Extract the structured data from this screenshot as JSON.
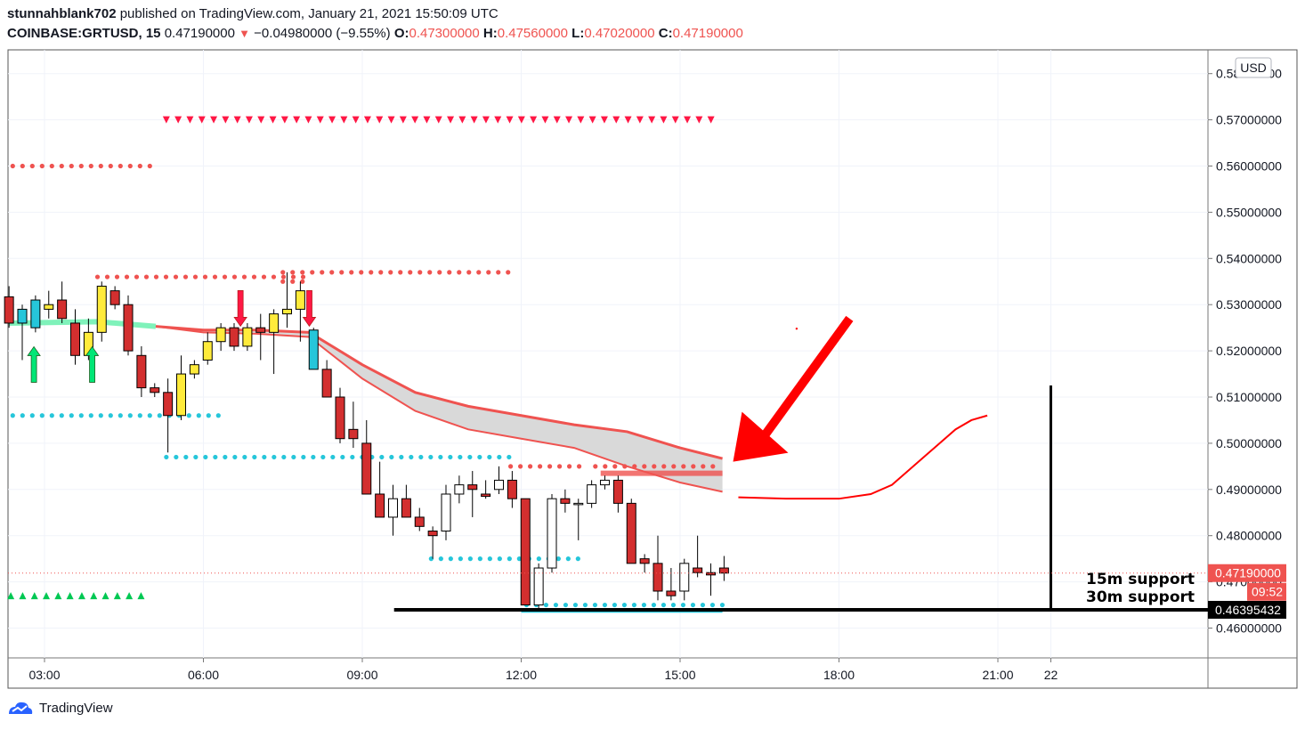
{
  "header": {
    "publisher": "stunnahblank702",
    "published_text": "published on TradingView.com, January 21, 2021 15:50:09 UTC",
    "symbol": "COINBASE:GRTUSD, 15",
    "last": "0.47190000",
    "change": "−0.04980000 (−9.55%)",
    "o_label": "O:",
    "o": "0.47300000",
    "h_label": "H:",
    "h": "0.47560000",
    "l_label": "L:",
    "l": "0.47020000",
    "c_label": "C:",
    "c": "0.47190000"
  },
  "footer": {
    "brand": "TradingView"
  },
  "price_axis": {
    "currency": "USD",
    "ticks": [
      "0.46000000",
      "0.47000000",
      "0.48000000",
      "0.49000000",
      "0.50000000",
      "0.51000000",
      "0.52000000",
      "0.53000000",
      "0.54000000",
      "0.55000000",
      "0.56000000",
      "0.57000000",
      "0.58000000"
    ],
    "last_price_label": "0.47190000",
    "countdown": "09:52",
    "support_price_label": "0.46395432"
  },
  "time_axis": {
    "ticks": [
      "03:00",
      "06:00",
      "09:00",
      "12:00",
      "15:00",
      "18:00",
      "21:00",
      "22"
    ]
  },
  "annotations": {
    "support_15m": "15m support",
    "support_30m": "30m support"
  },
  "colors": {
    "up": "#ffffff",
    "down": "#d32f2f",
    "yellow": "#ffeb3b",
    "cyan": "#26c6da",
    "red_dot": "#ef5350",
    "green": "#00c853",
    "arrow_red": "#ff0000",
    "band_fill": "#d9d9d9"
  },
  "chart_data": {
    "type": "candlestick",
    "interval": "15",
    "ylim": [
      0.455,
      0.585
    ],
    "xlim_hours": [
      2.33,
      24.55
    ],
    "candles": [
      {
        "t": 2.33,
        "o": 0.5317,
        "h": 0.534,
        "l": 0.525,
        "c": 0.526
      },
      {
        "t": 2.58,
        "o": 0.526,
        "h": 0.53,
        "l": 0.518,
        "c": 0.529
      },
      {
        "t": 2.83,
        "o": 0.525,
        "h": 0.532,
        "l": 0.524,
        "c": 0.531
      },
      {
        "t": 3.08,
        "o": 0.529,
        "h": 0.533,
        "l": 0.527,
        "c": 0.53
      },
      {
        "t": 3.33,
        "o": 0.531,
        "h": 0.535,
        "l": 0.526,
        "c": 0.527
      },
      {
        "t": 3.58,
        "o": 0.526,
        "h": 0.529,
        "l": 0.517,
        "c": 0.519
      },
      {
        "t": 3.83,
        "o": 0.519,
        "h": 0.527,
        "l": 0.518,
        "c": 0.524
      },
      {
        "t": 4.08,
        "o": 0.524,
        "h": 0.535,
        "l": 0.522,
        "c": 0.534
      },
      {
        "t": 4.33,
        "o": 0.533,
        "h": 0.534,
        "l": 0.529,
        "c": 0.53
      },
      {
        "t": 4.58,
        "o": 0.53,
        "h": 0.532,
        "l": 0.519,
        "c": 0.52
      },
      {
        "t": 4.83,
        "o": 0.519,
        "h": 0.521,
        "l": 0.51,
        "c": 0.512
      },
      {
        "t": 5.08,
        "o": 0.512,
        "h": 0.513,
        "l": 0.51,
        "c": 0.511
      },
      {
        "t": 5.33,
        "o": 0.511,
        "h": 0.514,
        "l": 0.498,
        "c": 0.506
      },
      {
        "t": 5.58,
        "o": 0.506,
        "h": 0.519,
        "l": 0.505,
        "c": 0.515
      },
      {
        "t": 5.83,
        "o": 0.515,
        "h": 0.518,
        "l": 0.514,
        "c": 0.517
      },
      {
        "t": 6.08,
        "o": 0.518,
        "h": 0.524,
        "l": 0.517,
        "c": 0.522
      },
      {
        "t": 6.33,
        "o": 0.522,
        "h": 0.526,
        "l": 0.52,
        "c": 0.525
      },
      {
        "t": 6.58,
        "o": 0.525,
        "h": 0.526,
        "l": 0.52,
        "c": 0.521
      },
      {
        "t": 6.83,
        "o": 0.521,
        "h": 0.526,
        "l": 0.52,
        "c": 0.525
      },
      {
        "t": 7.08,
        "o": 0.525,
        "h": 0.528,
        "l": 0.518,
        "c": 0.524
      },
      {
        "t": 7.33,
        "o": 0.524,
        "h": 0.529,
        "l": 0.515,
        "c": 0.528
      },
      {
        "t": 7.58,
        "o": 0.528,
        "h": 0.537,
        "l": 0.525,
        "c": 0.529
      },
      {
        "t": 7.83,
        "o": 0.529,
        "h": 0.535,
        "l": 0.522,
        "c": 0.533
      },
      {
        "t": 8.08,
        "o": 0.5245,
        "h": 0.525,
        "l": 0.516,
        "c": 0.516
      },
      {
        "t": 8.33,
        "o": 0.516,
        "h": 0.518,
        "l": 0.51,
        "c": 0.51
      },
      {
        "t": 8.58,
        "o": 0.51,
        "h": 0.512,
        "l": 0.5,
        "c": 0.501
      },
      {
        "t": 8.83,
        "o": 0.503,
        "h": 0.509,
        "l": 0.499,
        "c": 0.501
      },
      {
        "t": 9.08,
        "o": 0.5,
        "h": 0.505,
        "l": 0.489,
        "c": 0.489
      },
      {
        "t": 9.33,
        "o": 0.489,
        "h": 0.496,
        "l": 0.484,
        "c": 0.484
      },
      {
        "t": 9.58,
        "o": 0.484,
        "h": 0.491,
        "l": 0.48,
        "c": 0.488
      },
      {
        "t": 9.83,
        "o": 0.488,
        "h": 0.491,
        "l": 0.484,
        "c": 0.484
      },
      {
        "t": 10.08,
        "o": 0.484,
        "h": 0.486,
        "l": 0.481,
        "c": 0.482
      },
      {
        "t": 10.33,
        "o": 0.481,
        "h": 0.482,
        "l": 0.475,
        "c": 0.48
      },
      {
        "t": 10.58,
        "o": 0.481,
        "h": 0.491,
        "l": 0.479,
        "c": 0.489
      },
      {
        "t": 10.83,
        "o": 0.489,
        "h": 0.493,
        "l": 0.487,
        "c": 0.491
      },
      {
        "t": 11.08,
        "o": 0.491,
        "h": 0.494,
        "l": 0.484,
        "c": 0.49
      },
      {
        "t": 11.33,
        "o": 0.489,
        "h": 0.492,
        "l": 0.488,
        "c": 0.4885
      },
      {
        "t": 11.58,
        "o": 0.49,
        "h": 0.495,
        "l": 0.489,
        "c": 0.492
      },
      {
        "t": 11.83,
        "o": 0.492,
        "h": 0.494,
        "l": 0.486,
        "c": 0.488
      },
      {
        "t": 12.08,
        "o": 0.488,
        "h": 0.488,
        "l": 0.465,
        "c": 0.465
      },
      {
        "t": 12.33,
        "o": 0.465,
        "h": 0.474,
        "l": 0.464,
        "c": 0.473
      },
      {
        "t": 12.58,
        "o": 0.473,
        "h": 0.489,
        "l": 0.472,
        "c": 0.488
      },
      {
        "t": 12.83,
        "o": 0.488,
        "h": 0.49,
        "l": 0.485,
        "c": 0.487
      },
      {
        "t": 13.08,
        "o": 0.487,
        "h": 0.488,
        "l": 0.479,
        "c": 0.487
      },
      {
        "t": 13.33,
        "o": 0.487,
        "h": 0.492,
        "l": 0.486,
        "c": 0.491
      },
      {
        "t": 13.58,
        "o": 0.491,
        "h": 0.493,
        "l": 0.49,
        "c": 0.492
      },
      {
        "t": 13.83,
        "o": 0.492,
        "h": 0.493,
        "l": 0.485,
        "c": 0.487
      },
      {
        "t": 14.08,
        "o": 0.487,
        "h": 0.488,
        "l": 0.474,
        "c": 0.474
      },
      {
        "t": 14.33,
        "o": 0.475,
        "h": 0.476,
        "l": 0.472,
        "c": 0.474
      },
      {
        "t": 14.58,
        "o": 0.474,
        "h": 0.48,
        "l": 0.466,
        "c": 0.468
      },
      {
        "t": 14.83,
        "o": 0.468,
        "h": 0.473,
        "l": 0.466,
        "c": 0.467
      },
      {
        "t": 15.08,
        "o": 0.468,
        "h": 0.475,
        "l": 0.466,
        "c": 0.474
      },
      {
        "t": 15.33,
        "o": 0.473,
        "h": 0.48,
        "l": 0.471,
        "c": 0.472
      },
      {
        "t": 15.58,
        "o": 0.472,
        "h": 0.474,
        "l": 0.467,
        "c": 0.4715
      },
      {
        "t": 15.83,
        "o": 0.473,
        "h": 0.4756,
        "l": 0.4702,
        "c": 0.4719
      }
    ],
    "resistance_dots": [
      {
        "price": 0.56,
        "t_from": 2.4,
        "t_to": 5.0
      },
      {
        "price": 0.536,
        "t_from": 4.0,
        "t_to": 8.0
      },
      {
        "price": 0.537,
        "t_from": 7.5,
        "t_to": 11.8
      },
      {
        "price": 0.535,
        "t_from": 7.5,
        "t_to": 8.0
      },
      {
        "price": 0.495,
        "t_from": 11.8,
        "t_to": 13.2
      },
      {
        "price": 0.495,
        "t_from": 13.4,
        "t_to": 15.8
      }
    ],
    "support_dots": [
      {
        "price": 0.506,
        "t_from": 2.4,
        "t_to": 6.3
      },
      {
        "price": 0.497,
        "t_from": 5.3,
        "t_to": 11.8
      },
      {
        "price": 0.475,
        "t_from": 10.3,
        "t_to": 13.1
      },
      {
        "price": 0.465,
        "t_from": 12.1,
        "t_to": 15.8
      }
    ],
    "sell_triangles_price": 0.57,
    "sell_triangles_range": [
      5.3,
      15.8
    ],
    "buy_triangles_price": 0.467,
    "buy_triangles_range": [
      2.33,
      5.0
    ],
    "upper_band": [
      [
        2.33,
        0.526
      ],
      [
        4.0,
        0.5263
      ],
      [
        5.1,
        0.5253
      ],
      [
        6.0,
        0.5245
      ],
      [
        7.0,
        0.5245
      ],
      [
        8.0,
        0.524
      ],
      [
        9.0,
        0.517
      ],
      [
        10.0,
        0.511
      ],
      [
        11.0,
        0.508
      ],
      [
        12.0,
        0.506
      ],
      [
        13.0,
        0.504
      ],
      [
        14.0,
        0.5025
      ],
      [
        15.0,
        0.499
      ],
      [
        15.8,
        0.4967
      ]
    ],
    "lower_band": [
      [
        2.33,
        0.526
      ],
      [
        4.0,
        0.5263
      ],
      [
        5.1,
        0.5253
      ],
      [
        6.0,
        0.524
      ],
      [
        7.0,
        0.5237
      ],
      [
        8.0,
        0.523
      ],
      [
        9.0,
        0.514
      ],
      [
        10.0,
        0.507
      ],
      [
        11.0,
        0.503
      ],
      [
        12.0,
        0.501
      ],
      [
        13.0,
        0.499
      ],
      [
        14.0,
        0.495
      ],
      [
        15.0,
        0.4915
      ],
      [
        15.8,
        0.4895
      ]
    ],
    "band_green_until": 5.1,
    "support_level": 0.46395432,
    "support_line_range": [
      9.6,
      24.55
    ],
    "forecast_curve": [
      [
        16.1,
        0.4883
      ],
      [
        17.0,
        0.488
      ],
      [
        18.0,
        0.488
      ],
      [
        18.6,
        0.489
      ],
      [
        19.0,
        0.491
      ],
      [
        19.4,
        0.495
      ],
      [
        19.8,
        0.499
      ],
      [
        20.2,
        0.503
      ],
      [
        20.5,
        0.505
      ],
      [
        20.8,
        0.506
      ]
    ],
    "vertical_line": {
      "t": 22.0,
      "top": 0.5125,
      "bottom": 0.464
    },
    "buy_arrows": [
      2.8,
      3.9
    ],
    "sell_arrows": [
      6.7,
      8.0
    ],
    "big_arrow": {
      "tail": [
        18.2,
        0.527
      ],
      "head": [
        16.0,
        0.496
      ]
    }
  }
}
